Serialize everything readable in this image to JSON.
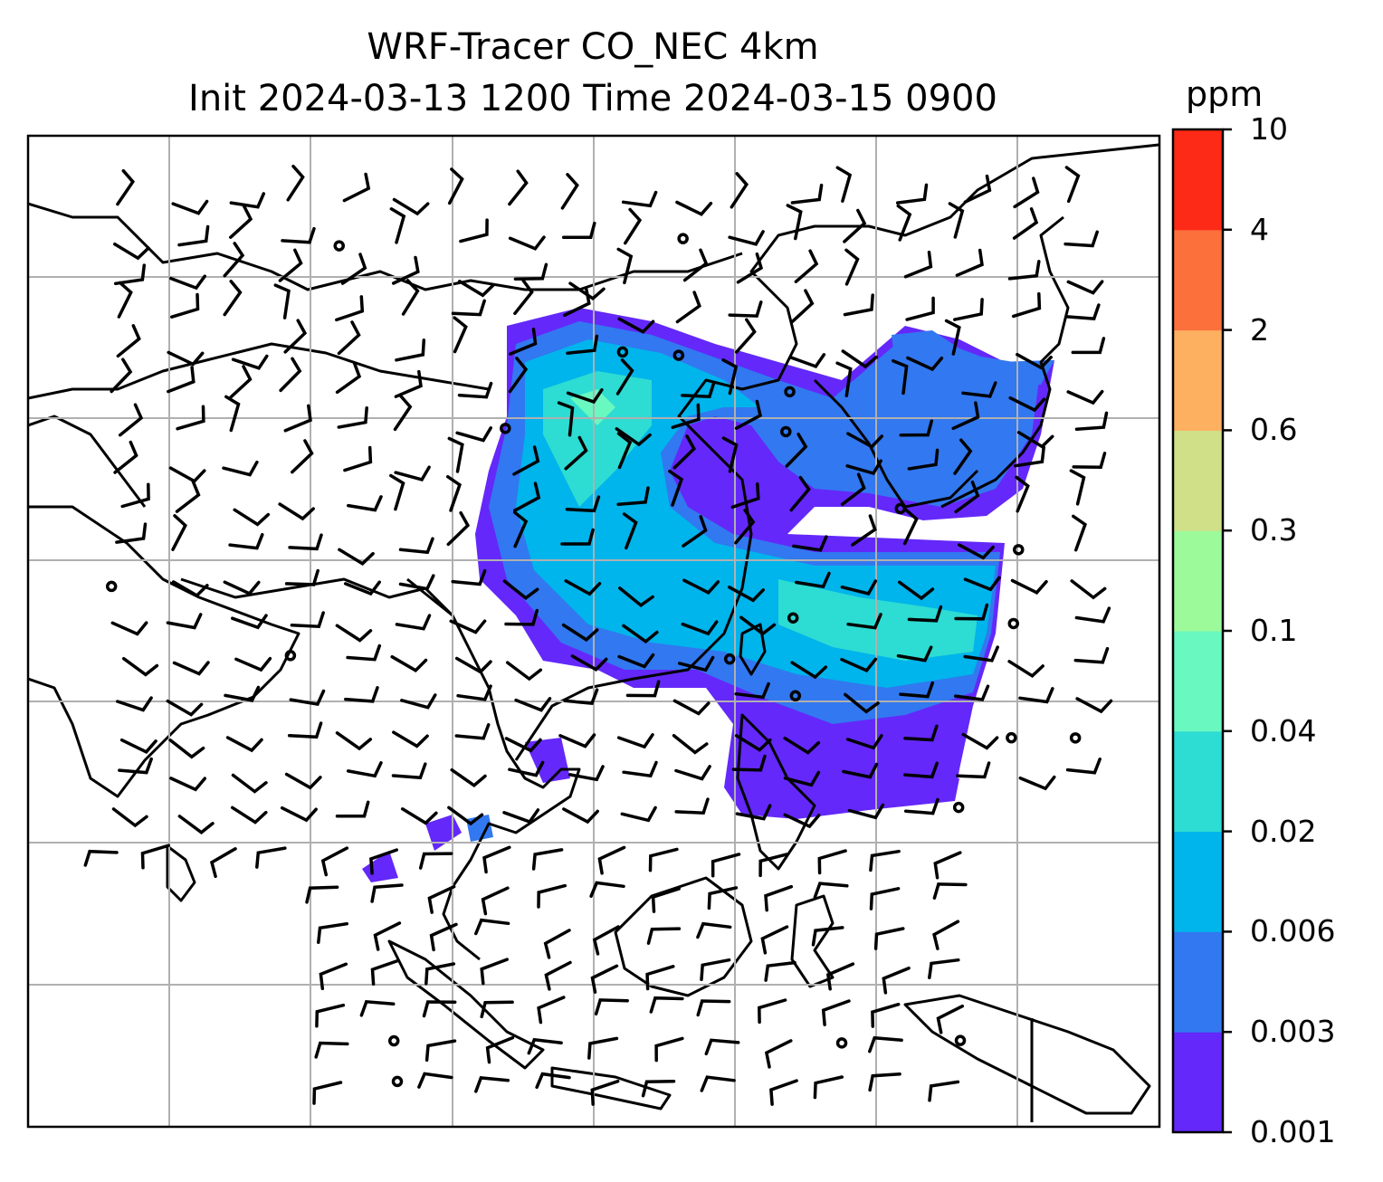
{
  "title": {
    "line1": "WRF-Tracer CO_NEC 4km",
    "line2": "Init 2024-03-13 1200 Time 2024-03-15 0900"
  },
  "colorbar": {
    "unit": "ppm",
    "ticks": [
      "0.001",
      "0.003",
      "0.006",
      "0.02",
      "0.04",
      "0.1",
      "0.3",
      "0.6",
      "2",
      "4",
      "10"
    ],
    "colors": [
      "#6428fa",
      "#3278f0",
      "#00b4ec",
      "#2ddcd2",
      "#68f8c0",
      "#9cfa9a",
      "#d0e088",
      "#fdb060",
      "#fc703c",
      "#fc2a16"
    ]
  },
  "map": {
    "gridlines": true,
    "wind_barbs": true,
    "coastlines": true
  }
}
